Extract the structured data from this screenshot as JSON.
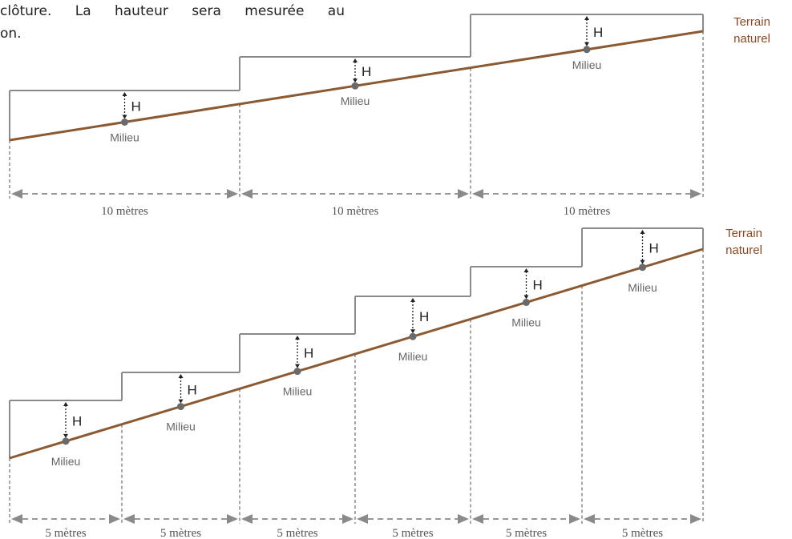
{
  "intro": {
    "line1": "clôture. La hauteur sera mesurée au",
    "line2": "on."
  },
  "colors": {
    "ground": "#8b5a32",
    "fence": "#8a8a8a",
    "dash": "#8a8a8a",
    "point": "#6a6a6a",
    "terrain_label": "#8b4a22"
  },
  "diagrams": [
    {
      "terrain_label_line1": "Terrain",
      "terrain_label_line2": "naturel",
      "segments": [
        {
          "h_label": "H",
          "midpoint_label": "Milieu",
          "distance_label": "10 mètres"
        },
        {
          "h_label": "H",
          "midpoint_label": "Milieu",
          "distance_label": "10 mètres"
        },
        {
          "h_label": "H",
          "midpoint_label": "Milieu",
          "distance_label": "10 mètres"
        }
      ]
    },
    {
      "terrain_label_line1": "Terrain",
      "terrain_label_line2": "naturel",
      "segments": [
        {
          "h_label": "H",
          "midpoint_label": "Milieu",
          "distance_label": "5 mètres"
        },
        {
          "h_label": "H",
          "midpoint_label": "Milieu",
          "distance_label": "5 mètres"
        },
        {
          "h_label": "H",
          "midpoint_label": "Milieu",
          "distance_label": "5 mètres"
        },
        {
          "h_label": "H",
          "midpoint_label": "Milieu",
          "distance_label": "5 mètres"
        },
        {
          "h_label": "H",
          "midpoint_label": "Milieu",
          "distance_label": "5 mètres"
        },
        {
          "h_label": "H",
          "midpoint_label": "Milieu",
          "distance_label": "5 mètres"
        }
      ]
    }
  ]
}
